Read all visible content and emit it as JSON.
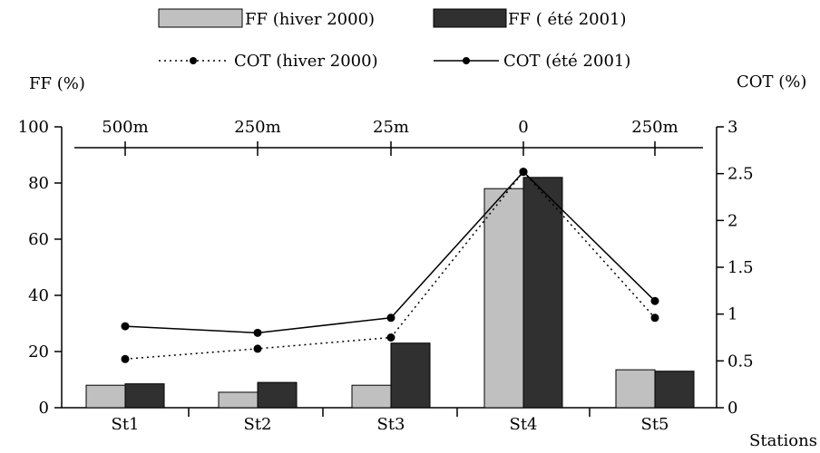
{
  "chart_data": {
    "type": "bar",
    "categories": [
      "St1",
      "St2",
      "St3",
      "St4",
      "St5"
    ],
    "top_axis_labels": [
      "500m",
      "250m",
      "25m",
      "0",
      "250m"
    ],
    "xlabel": "Stations",
    "ylabel_left": "FF (%)",
    "ylabel_right": "COT (%)",
    "ylim_left": [
      0,
      100
    ],
    "ylim_right": [
      0,
      3
    ],
    "yticks_left": [
      "0",
      "20",
      "40",
      "60",
      "80",
      "100"
    ],
    "yticks_right": [
      "0",
      "0.5",
      "1",
      "1.5",
      "2",
      "2.5",
      "3"
    ],
    "series": [
      {
        "name": "FF (hiver 2000)",
        "type": "bar",
        "axis": "left",
        "values": [
          8,
          5.5,
          8,
          78,
          13.5
        ],
        "color": "#c0c0c0"
      },
      {
        "name": "FF ( été 2001)",
        "type": "bar",
        "axis": "left",
        "values": [
          8.5,
          9,
          23,
          82,
          13
        ],
        "color": "#303030"
      },
      {
        "name": "COT (hiver 2000)",
        "type": "line",
        "style": "dotted",
        "axis": "right",
        "values": [
          0.52,
          0.63,
          0.75,
          2.52,
          0.96
        ],
        "color": "#000000"
      },
      {
        "name": "COT (été 2001)",
        "type": "line",
        "style": "solid",
        "axis": "right",
        "values": [
          0.87,
          0.8,
          0.96,
          2.52,
          1.14
        ],
        "color": "#000000"
      }
    ],
    "grid": false,
    "legend_position": "top"
  }
}
